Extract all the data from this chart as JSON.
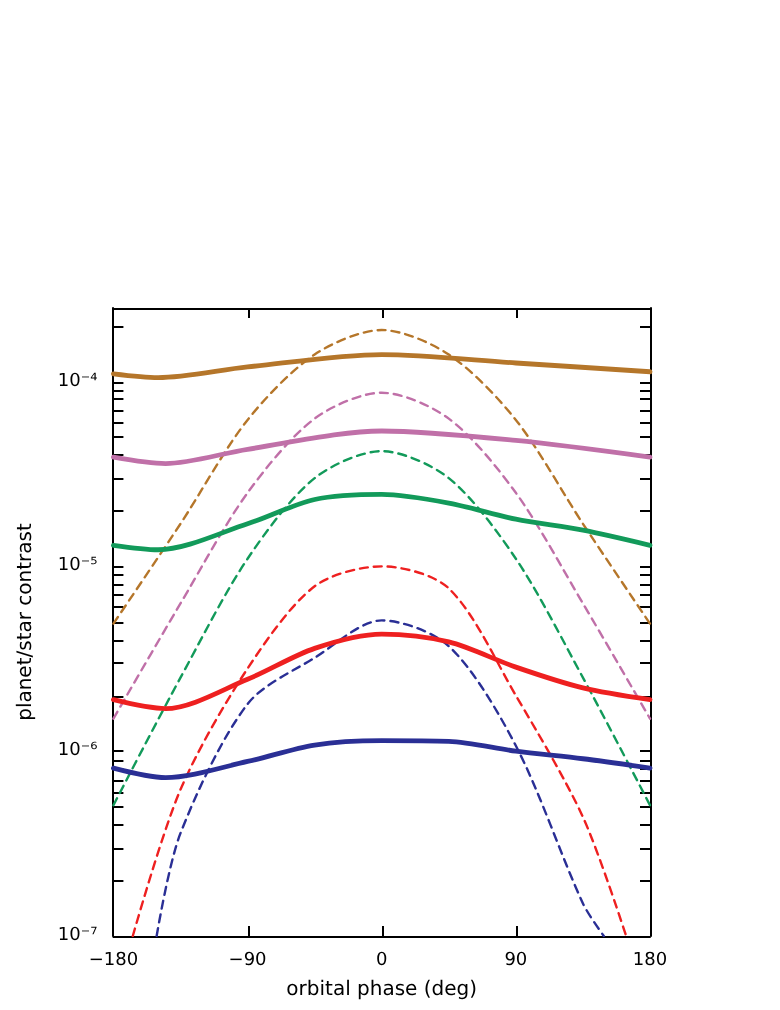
{
  "chart_data": {
    "type": "line",
    "xlabel": "orbital phase (deg)",
    "ylabel": "planet/star contrast",
    "log": "y",
    "marker": "none",
    "xlim": [
      -180,
      180
    ],
    "xticks": [
      {
        "value": -180,
        "label": "−180"
      },
      {
        "value": -90,
        "label": "−90"
      },
      0,
      90,
      180
    ],
    "ylim": [
      1e-07,
      0.00025
    ],
    "yticks": [
      {
        "value": 1e-07,
        "label": "10⁻⁷"
      },
      {
        "value": 2e-07,
        "label": null
      },
      {
        "value": 3e-07,
        "label": null
      },
      {
        "value": 4e-07,
        "label": null
      },
      {
        "value": 5e-07,
        "label": null
      },
      {
        "value": 6e-07,
        "label": null
      },
      {
        "value": 7e-07,
        "label": null
      },
      {
        "value": 8e-07,
        "label": null
      },
      {
        "value": 9e-07,
        "label": null
      },
      {
        "value": 1e-06,
        "label": "10⁻⁶"
      },
      {
        "value": 2e-06,
        "label": null
      },
      {
        "value": 3e-06,
        "label": null
      },
      {
        "value": 4e-06,
        "label": null
      },
      {
        "value": 5e-06,
        "label": null
      },
      {
        "value": 6e-06,
        "label": null
      },
      {
        "value": 7e-06,
        "label": null
      },
      {
        "value": 8e-06,
        "label": null
      },
      {
        "value": 9e-06,
        "label": null
      },
      {
        "value": 1e-05,
        "label": "10⁻⁵"
      },
      {
        "value": 2e-05,
        "label": null
      },
      {
        "value": 3e-05,
        "label": null
      },
      {
        "value": 4e-05,
        "label": null
      },
      {
        "value": 5e-05,
        "label": null
      },
      {
        "value": 6e-05,
        "label": null
      },
      {
        "value": 7e-05,
        "label": null
      },
      {
        "value": 8e-05,
        "label": null
      },
      {
        "value": 9e-05,
        "label": null
      },
      {
        "value": 0.0001,
        "label": "10⁻⁴"
      },
      {
        "value": 0.0002,
        "label": null
      }
    ],
    "series": [
      {
        "color": "#b5762a",
        "line_style": "solid",
        "x": [
          -180,
          -150,
          -90,
          0,
          90,
          180
        ],
        "values": [
          0.00011,
          0.000105,
          0.00012,
          0.00014,
          0.000126,
          0.000113
        ]
      },
      {
        "color": "#c070a8",
        "line_style": "solid",
        "x": [
          -180,
          -145,
          -90,
          0,
          90,
          180
        ],
        "values": [
          3.9e-05,
          3.6e-05,
          4.3e-05,
          5.4e-05,
          4.8e-05,
          3.9e-05
        ]
      },
      {
        "color": "#129a5a",
        "line_style": "solid",
        "x": [
          -180,
          -150,
          -90,
          -45,
          0,
          45,
          90,
          135,
          180
        ],
        "values": [
          1.3e-05,
          1.23e-05,
          1.7e-05,
          2.3e-05,
          2.45e-05,
          2.2e-05,
          1.8e-05,
          1.57e-05,
          1.3e-05
        ]
      },
      {
        "color": "#ee2020",
        "line_style": "solid",
        "x": [
          -180,
          -145,
          -90,
          -45,
          0,
          45,
          90,
          135,
          180
        ],
        "values": [
          1.9e-06,
          1.7e-06,
          2.45e-06,
          3.6e-06,
          4.3e-06,
          3.9e-06,
          2.85e-06,
          2.2e-06,
          1.9e-06
        ]
      },
      {
        "color": "#2a2f95",
        "line_style": "solid",
        "x": [
          -180,
          -145,
          -90,
          -45,
          0,
          45,
          90,
          135,
          180
        ],
        "values": [
          8.1e-07,
          7.2e-07,
          8.8e-07,
          1.08e-06,
          1.14e-06,
          1.13e-06,
          1e-06,
          9.1e-07,
          8.1e-07
        ]
      },
      {
        "color": "#b5762a",
        "line_style": "dashed",
        "x": [
          -180,
          -135,
          -90,
          -45,
          0,
          45,
          90,
          135,
          180
        ],
        "values": [
          4.9e-06,
          1.7e-05,
          6.2e-05,
          0.00014,
          0.00019,
          0.00014,
          6.2e-05,
          1.7e-05,
          4.9e-06
        ]
      },
      {
        "color": "#c070a8",
        "line_style": "dashed",
        "x": [
          -180,
          -135,
          -90,
          -45,
          0,
          45,
          90,
          135,
          180
        ],
        "values": [
          1.5e-06,
          6.3e-06,
          2.5e-05,
          6.3e-05,
          8.7e-05,
          6.3e-05,
          2.5e-05,
          6.3e-06,
          1.5e-06
        ]
      },
      {
        "color": "#129a5a",
        "line_style": "dashed",
        "x": [
          -180,
          -135,
          -90,
          -45,
          0,
          45,
          90,
          135,
          180
        ],
        "values": [
          5.1e-07,
          2.5e-06,
          1.1e-05,
          3e-05,
          4.2e-05,
          3e-05,
          1.1e-05,
          2.5e-06,
          5.1e-07
        ]
      },
      {
        "color": "#ee2020",
        "line_style": "dashed",
        "x": [
          -167,
          -135,
          -90,
          -45,
          0,
          45,
          90,
          135,
          164
        ],
        "values": [
          1e-07,
          6.2e-07,
          2.8e-06,
          7.8e-06,
          1e-05,
          7.6e-06,
          2e-06,
          4.4e-07,
          1e-07
        ]
      },
      {
        "color": "#2a2f95",
        "line_style": "dashed",
        "x": [
          -151,
          -135,
          -90,
          -45,
          0,
          45,
          90,
          135,
          149
        ],
        "values": [
          1e-07,
          3.6e-07,
          1.8e-06,
          3.2e-06,
          5.1e-06,
          3.7e-06,
          1.07e-06,
          1.5e-07,
          1e-07
        ]
      }
    ]
  }
}
